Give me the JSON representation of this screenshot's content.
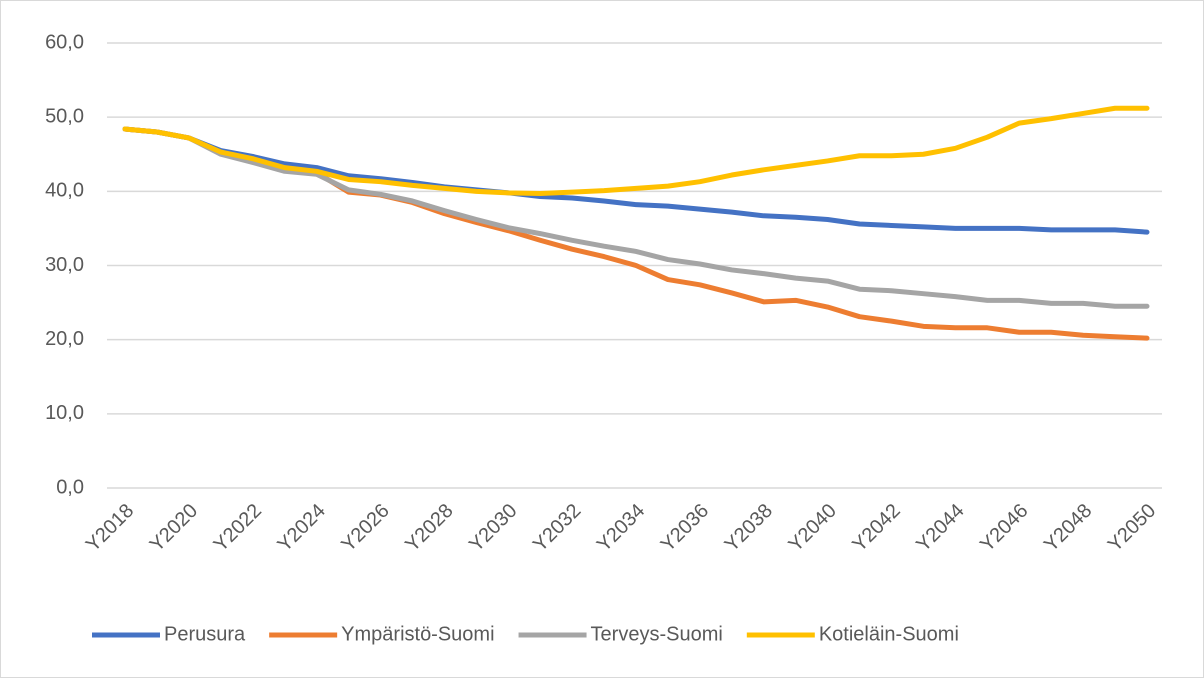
{
  "chart_data": {
    "type": "line",
    "categories": [
      "Y2018",
      null,
      "Y2020",
      null,
      "Y2022",
      null,
      "Y2024",
      null,
      "Y2026",
      null,
      "Y2028",
      null,
      "Y2030",
      null,
      "Y2032",
      null,
      "Y2034",
      null,
      "Y2036",
      null,
      "Y2038",
      null,
      "Y2040",
      null,
      "Y2042",
      null,
      "Y2044",
      null,
      "Y2046",
      null,
      "Y2048",
      null,
      "Y2050"
    ],
    "series": [
      {
        "name": "Perusura",
        "color": "#4472c4",
        "values": [
          48.4,
          48.0,
          47.2,
          45.5,
          44.7,
          43.7,
          43.2,
          42.1,
          41.7,
          41.2,
          40.6,
          40.2,
          39.8,
          39.3,
          39.1,
          38.7,
          38.2,
          38.0,
          37.6,
          37.2,
          36.7,
          36.5,
          36.2,
          35.6,
          35.4,
          35.2,
          35.0,
          35.0,
          35.0,
          34.8,
          34.8,
          34.8,
          34.5
        ]
      },
      {
        "name": "Ympäristö-Suomi",
        "color": "#ed7d31",
        "values": [
          48.4,
          48.0,
          47.2,
          45.2,
          44.3,
          43.0,
          42.5,
          39.9,
          39.5,
          38.5,
          37.0,
          35.8,
          34.7,
          33.4,
          32.2,
          31.2,
          30.0,
          28.1,
          27.4,
          26.3,
          25.1,
          25.3,
          24.4,
          23.1,
          22.5,
          21.8,
          21.6,
          21.6,
          21.0,
          21.0,
          20.6,
          20.4,
          20.2
        ]
      },
      {
        "name": "Terveys-Suomi",
        "color": "#a5a5a5",
        "values": [
          48.4,
          48.0,
          47.2,
          45.0,
          43.9,
          42.7,
          42.3,
          40.2,
          39.6,
          38.7,
          37.4,
          36.2,
          35.1,
          34.3,
          33.4,
          32.6,
          31.9,
          30.8,
          30.2,
          29.4,
          28.9,
          28.3,
          27.9,
          26.8,
          26.6,
          26.2,
          25.8,
          25.3,
          25.3,
          24.9,
          24.9,
          24.5,
          24.5
        ]
      },
      {
        "name": "Kotieläin-Suomi",
        "color": "#ffc000",
        "values": [
          48.4,
          48.0,
          47.2,
          45.3,
          44.4,
          43.2,
          42.7,
          41.6,
          41.3,
          40.8,
          40.4,
          40.0,
          39.8,
          39.7,
          39.9,
          40.1,
          40.4,
          40.7,
          41.3,
          42.2,
          42.9,
          43.5,
          44.1,
          44.8,
          44.8,
          45.0,
          45.8,
          47.3,
          49.2,
          49.8,
          50.5,
          51.2,
          51.2
        ]
      }
    ],
    "ylim": [
      0,
      60
    ],
    "yticks": [
      {
        "value": 0,
        "label": "0,0"
      },
      {
        "value": 10,
        "label": "10,0"
      },
      {
        "value": 20,
        "label": "20,0"
      },
      {
        "value": 30,
        "label": "30,0"
      },
      {
        "value": 40,
        "label": "40,0"
      },
      {
        "value": 50,
        "label": "50,0"
      },
      {
        "value": 60,
        "label": "60,0"
      }
    ],
    "grid": true,
    "legend": "bottom"
  }
}
